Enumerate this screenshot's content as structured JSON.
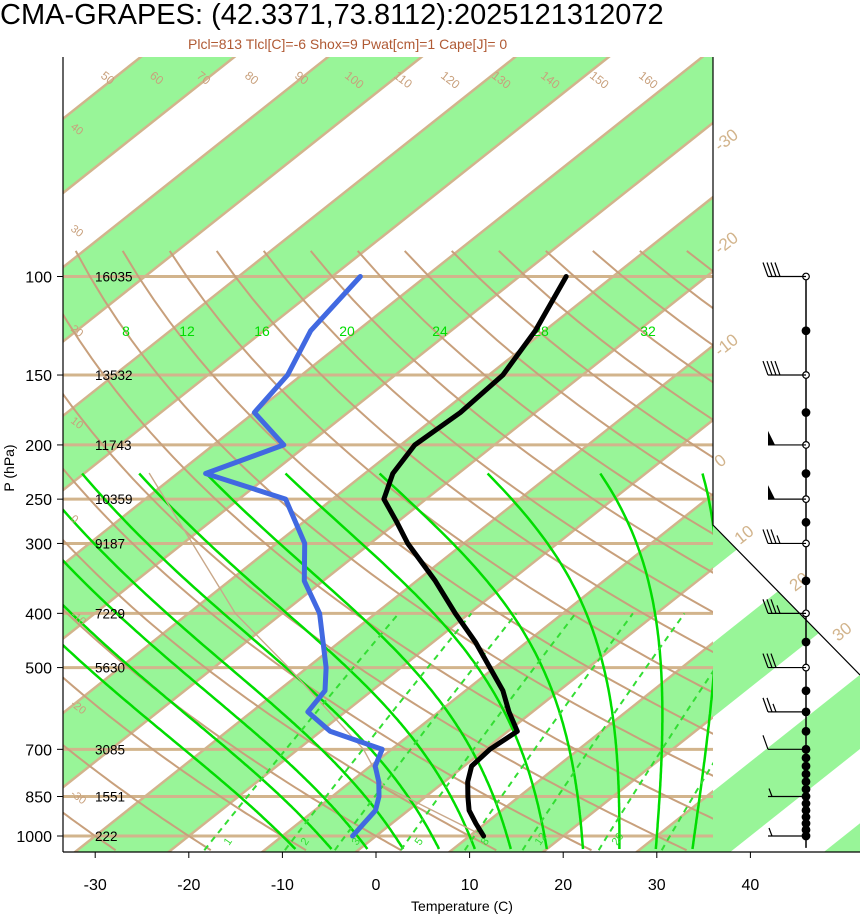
{
  "title": "CMA-GRAPES: (42.3371,73.8112):2025121312072",
  "subtitle": "Plcl=813 Tlcl[C]=-6 Shox=9 Pwat[cm]=1 Cape[J]= 0",
  "colors": {
    "isotherm": "#d2b48c",
    "dry_adiabat": "#c8a07c",
    "moist_adiabat": "#00dd00",
    "mixing_ratio": "#33dd33",
    "band_fill": "#98f598",
    "temperature": "#000000",
    "dewpoint": "#4169e1",
    "subtitle": "#b05a34"
  },
  "chart_data": {
    "type": "skew-t",
    "xlabel": "Temperature (C)",
    "ylabel": "P (hPa)",
    "x_ticks": [
      "-30",
      "-20",
      "-10",
      "0",
      "10",
      "20",
      "30",
      "40"
    ],
    "x_tick_values": [
      -30,
      -20,
      -10,
      0,
      10,
      20,
      30,
      40
    ],
    "pressure_levels": [
      "100",
      "150",
      "200",
      "250",
      "300",
      "400",
      "500",
      "700",
      "850",
      "1000"
    ],
    "pressure_values": [
      100,
      150,
      200,
      250,
      300,
      400,
      500,
      700,
      850,
      1000
    ],
    "heights": [
      "16035",
      "13532",
      "11743",
      "10359",
      "9187",
      "7229",
      "5630",
      "3085",
      "1551",
      "222"
    ],
    "isotherm_labels_right": [
      "-30",
      "-20",
      "-10",
      "0",
      "10",
      "20",
      "30"
    ],
    "dry_adiabat_labels": [
      "50",
      "60",
      "70",
      "80",
      "90",
      "100",
      "110",
      "120",
      "130",
      "140",
      "150",
      "160"
    ],
    "left_edge_labels": [
      "40",
      "30",
      "20",
      "10",
      "0",
      "-10",
      "-20",
      "-30"
    ],
    "moist_adiabat_labels": [
      "8",
      "12",
      "16",
      "20",
      "24",
      "28",
      "32"
    ],
    "mixing_ratio_labels": [
      "1",
      "2",
      "3",
      "5",
      "8",
      "12",
      "20"
    ],
    "temperature": {
      "name": "Temperature",
      "points": [
        {
          "p": 1000,
          "t": 11.5
        },
        {
          "p": 950,
          "t": 9.0
        },
        {
          "p": 900,
          "t": 6.5
        },
        {
          "p": 850,
          "t": 4.5
        },
        {
          "p": 800,
          "t": 2.5
        },
        {
          "p": 750,
          "t": 0.8
        },
        {
          "p": 700,
          "t": 0.5
        },
        {
          "p": 650,
          "t": 1.0
        },
        {
          "p": 600,
          "t": -2.5
        },
        {
          "p": 550,
          "t": -6.0
        },
        {
          "p": 500,
          "t": -10.5
        },
        {
          "p": 450,
          "t": -15.5
        },
        {
          "p": 400,
          "t": -21.5
        },
        {
          "p": 350,
          "t": -28.0
        },
        {
          "p": 300,
          "t": -36.0
        },
        {
          "p": 275,
          "t": -40.0
        },
        {
          "p": 250,
          "t": -44.5
        },
        {
          "p": 225,
          "t": -47.0
        },
        {
          "p": 200,
          "t": -48.5
        },
        {
          "p": 175,
          "t": -48.0
        },
        {
          "p": 150,
          "t": -48.5
        },
        {
          "p": 125,
          "t": -51.0
        },
        {
          "p": 100,
          "t": -55.0
        }
      ]
    },
    "dewpoint": {
      "name": "Dewpoint",
      "points": [
        {
          "p": 1000,
          "t": -2.5
        },
        {
          "p": 900,
          "t": -3.5
        },
        {
          "p": 850,
          "t": -5.0
        },
        {
          "p": 800,
          "t": -7.0
        },
        {
          "p": 750,
          "t": -9.5
        },
        {
          "p": 700,
          "t": -11.0
        },
        {
          "p": 650,
          "t": -19.0
        },
        {
          "p": 600,
          "t": -24.0
        },
        {
          "p": 550,
          "t": -25.0
        },
        {
          "p": 500,
          "t": -28.0
        },
        {
          "p": 400,
          "t": -36.0
        },
        {
          "p": 350,
          "t": -42.0
        },
        {
          "p": 300,
          "t": -47.0
        },
        {
          "p": 250,
          "t": -55.0
        },
        {
          "p": 225,
          "t": -67.0
        },
        {
          "p": 200,
          "t": -62.5
        },
        {
          "p": 175,
          "t": -70.0
        },
        {
          "p": 150,
          "t": -71.5
        },
        {
          "p": 125,
          "t": -75.0
        },
        {
          "p": 100,
          "t": -77.0
        }
      ]
    },
    "parcel": {
      "name": "Parcel",
      "points": [
        {
          "p": 1000,
          "t": 11.5
        },
        {
          "p": 813,
          "t": -6.0
        },
        {
          "p": 700,
          "t": -13.0
        },
        {
          "p": 500,
          "t": -32.0
        },
        {
          "p": 400,
          "t": -45.0
        },
        {
          "p": 300,
          "t": -59.0
        },
        {
          "p": 225,
          "t": -73.0
        }
      ]
    },
    "wind_profile": [
      {
        "p": 100,
        "speed_kt": 40,
        "dir": 270
      },
      {
        "p": 150,
        "speed_kt": 40,
        "dir": 270
      },
      {
        "p": 200,
        "speed_kt": 50,
        "dir": 270
      },
      {
        "p": 250,
        "speed_kt": 50,
        "dir": 270
      },
      {
        "p": 300,
        "speed_kt": 35,
        "dir": 270
      },
      {
        "p": 400,
        "speed_kt": 35,
        "dir": 270
      },
      {
        "p": 500,
        "speed_kt": 30,
        "dir": 270
      },
      {
        "p": 600,
        "speed_kt": 25,
        "dir": 270
      },
      {
        "p": 700,
        "speed_kt": 10,
        "dir": 270
      },
      {
        "p": 850,
        "speed_kt": 5,
        "dir": 250
      },
      {
        "p": 1000,
        "speed_kt": 5,
        "dir": 240
      }
    ]
  }
}
